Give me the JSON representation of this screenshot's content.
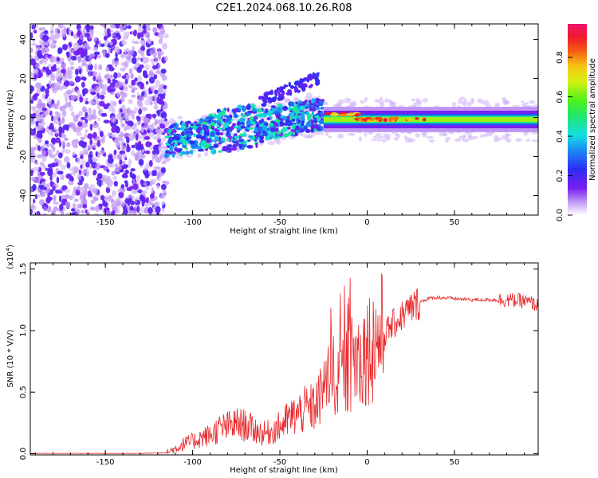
{
  "title": "C2E1.2024.068.10.26.R08",
  "colors": {
    "snr_line": "#e8262a",
    "axis": "#000000"
  },
  "chart_data": [
    {
      "type": "heatmap",
      "name": "spectrogram",
      "xlabel": "Height of straight line (km)",
      "ylabel": "Frequency (Hz)",
      "xlim": [
        -193,
        98
      ],
      "ylim": [
        -50,
        48
      ],
      "xticks": [
        -150,
        -100,
        -50,
        0,
        50
      ],
      "yticks": [
        -40,
        -20,
        0,
        20,
        40
      ],
      "xtick_labels": [
        "-150",
        "-100",
        "-50",
        "0",
        "50"
      ],
      "ytick_labels": [
        "-40",
        "-20",
        "0",
        "20",
        "40"
      ],
      "colorbar": {
        "label": "Normalized spectral amplitude",
        "range": [
          0,
          0.97
        ],
        "ticks": [
          0.0,
          0.2,
          0.4,
          0.6,
          0.8
        ],
        "tick_labels": [
          "0.0",
          "0.2",
          "0.4",
          "0.6",
          "0.8"
        ],
        "colormap": "rainbow (white-violet-blue-cyan-green-yellow-orange-red-magenta)"
      },
      "features": [
        {
          "region": "noise",
          "x_range": [
            -193,
            -115
          ],
          "freq_range": [
            -50,
            48
          ],
          "amplitude": "0.1-0.25"
        },
        {
          "region": "onset",
          "x_range": [
            -115,
            -25
          ],
          "center_freq_start": -12,
          "center_freq_end": 2,
          "amplitude": "0.2-0.5"
        },
        {
          "region": "branch",
          "x_range": [
            -60,
            -30
          ],
          "freq_range": [
            8,
            20
          ],
          "amplitude": "0.15-0.25"
        },
        {
          "region": "stable_line",
          "x_range": [
            -25,
            98
          ],
          "center_freq": -1,
          "amplitude": "0.6-0.97"
        }
      ]
    },
    {
      "type": "line",
      "name": "snr",
      "xlabel": "Height of straight line (km)",
      "ylabel": "SNR (10 * V/V)",
      "multiplier_label": "(x10",
      "multiplier_exp": "4",
      "multiplier_close": ")",
      "xlim": [
        -193,
        98
      ],
      "ylim": [
        -0.01,
        1.55
      ],
      "xticks": [
        -150,
        -100,
        -50,
        0,
        50
      ],
      "yticks": [
        0.0,
        0.5,
        1.0,
        1.5
      ],
      "xtick_labels": [
        "-150",
        "-100",
        "-50",
        "0",
        "50"
      ],
      "ytick_labels": [
        "0.0",
        "0.5",
        "1.0",
        "1.5"
      ],
      "series": [
        {
          "name": "SNR",
          "x": [
            -193,
            -170,
            -150,
            -130,
            -115,
            -110,
            -105,
            -100,
            -95,
            -90,
            -85,
            -80,
            -75,
            -70,
            -65,
            -60,
            -55,
            -50,
            -45,
            -40,
            -35,
            -30,
            -27,
            -25,
            -20,
            -15,
            -10,
            -5,
            0,
            5,
            10,
            15,
            20,
            25,
            30,
            35,
            40,
            50,
            60,
            70,
            80,
            90,
            95,
            98
          ],
          "values": [
            0.0,
            0.0,
            0.0,
            0.0,
            0.01,
            0.04,
            0.08,
            0.1,
            0.13,
            0.15,
            0.2,
            0.22,
            0.24,
            0.23,
            0.2,
            0.16,
            0.18,
            0.22,
            0.28,
            0.32,
            0.36,
            0.38,
            0.45,
            0.55,
            0.65,
            0.62,
            0.72,
            0.78,
            0.86,
            0.92,
            0.98,
            1.05,
            1.12,
            1.18,
            1.23,
            1.26,
            1.27,
            1.26,
            1.25,
            1.25,
            1.25,
            1.24,
            1.22,
            1.2
          ]
        }
      ]
    }
  ]
}
